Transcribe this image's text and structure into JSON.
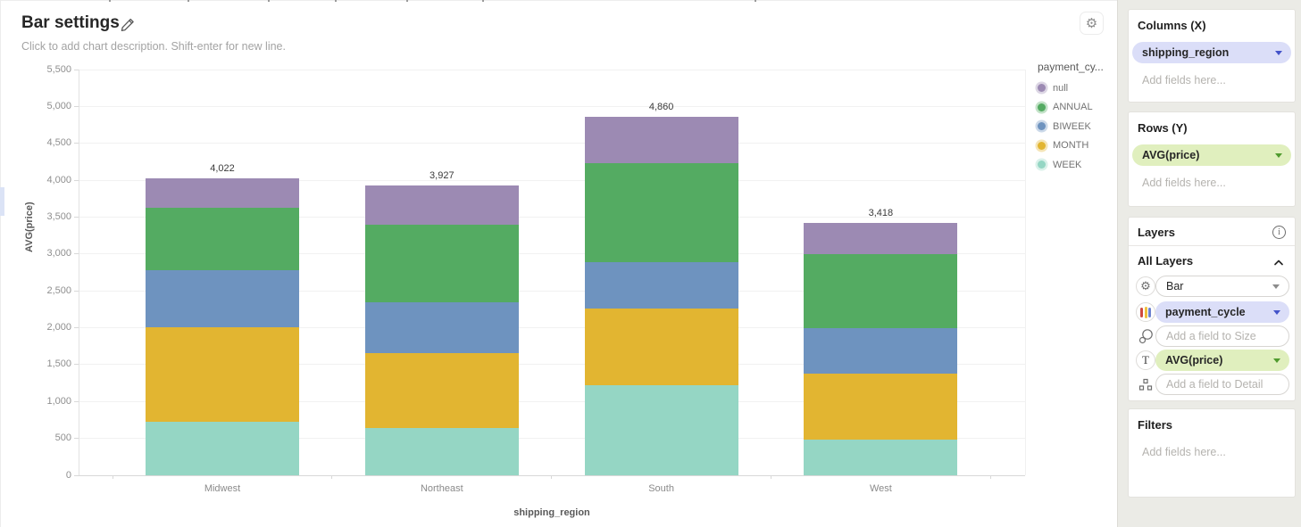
{
  "header": {
    "title": "Bar settings",
    "description_placeholder": "Click to add chart description. Shift-enter for new line."
  },
  "chart_data": {
    "type": "bar",
    "stacked": true,
    "categories": [
      "Midwest",
      "Northeast",
      "South",
      "West"
    ],
    "series": [
      {
        "name": "WEEK",
        "color": "#95d6c4",
        "values": [
          722,
          644,
          1225,
          487
        ]
      },
      {
        "name": "MONTH",
        "color": "#e2b531",
        "values": [
          1285,
          1012,
          1032,
          887
        ]
      },
      {
        "name": "BIWEEK",
        "color": "#6e93bf",
        "values": [
          777,
          685,
          636,
          624
        ]
      },
      {
        "name": "ANNUAL",
        "color": "#54ab62",
        "values": [
          846,
          1054,
          1341,
          1000
        ]
      },
      {
        "name": "null",
        "color": "#9c8ab3",
        "values": [
          392,
          532,
          626,
          420
        ]
      }
    ],
    "totals": [
      4022,
      3927,
      4860,
      3418
    ],
    "total_labels": [
      "4,022",
      "3,927",
      "4,860",
      "3,418"
    ],
    "xlabel": "shipping_region",
    "ylabel": "AVG(price)",
    "ylim": [
      0,
      5500
    ],
    "ytick_step": 500,
    "ytick_labels": [
      "0",
      "500",
      "1,000",
      "1,500",
      "2,000",
      "2,500",
      "3,000",
      "3,500",
      "4,000",
      "4,500",
      "5,000",
      "5,500"
    ],
    "grid": true,
    "legend": {
      "position": "right",
      "title": "payment_cy...",
      "entries": [
        {
          "label": "null",
          "color": "#9c8ab3"
        },
        {
          "label": "ANNUAL",
          "color": "#54ab62"
        },
        {
          "label": "BIWEEK",
          "color": "#6e93bf"
        },
        {
          "label": "MONTH",
          "color": "#e2b531"
        },
        {
          "label": "WEEK",
          "color": "#95d6c4"
        }
      ]
    }
  },
  "panel": {
    "columns_card": {
      "title": "Columns (X)",
      "field": "shipping_region",
      "placeholder": "Add fields here..."
    },
    "rows_card": {
      "title": "Rows (Y)",
      "field": "AVG(price)",
      "placeholder": "Add fields here..."
    },
    "layers_card": {
      "title": "Layers",
      "section": "All Layers",
      "rows": [
        {
          "icon": "gear-icon",
          "label": "Bar"
        },
        {
          "icon": "color-icon",
          "label": "payment_cycle"
        },
        {
          "icon": "size-icon",
          "placeholder": "Add a field to Size"
        },
        {
          "icon": "text-icon",
          "label": "AVG(price)"
        },
        {
          "icon": "detail-icon",
          "placeholder": "Add a field to Detail"
        }
      ]
    },
    "filters_card": {
      "title": "Filters",
      "placeholder": "Add fields here..."
    }
  },
  "colors": {
    "panel_bg": "#ebebe6",
    "pill_dimension_bg": "#dbdef8",
    "pill_dimension_caret": "#4353c9",
    "pill_measure_bg": "#e0efbe",
    "pill_measure_caret": "#4f9b2e",
    "gridline": "#f1f1f1",
    "axis_line": "#d8d8d8"
  }
}
